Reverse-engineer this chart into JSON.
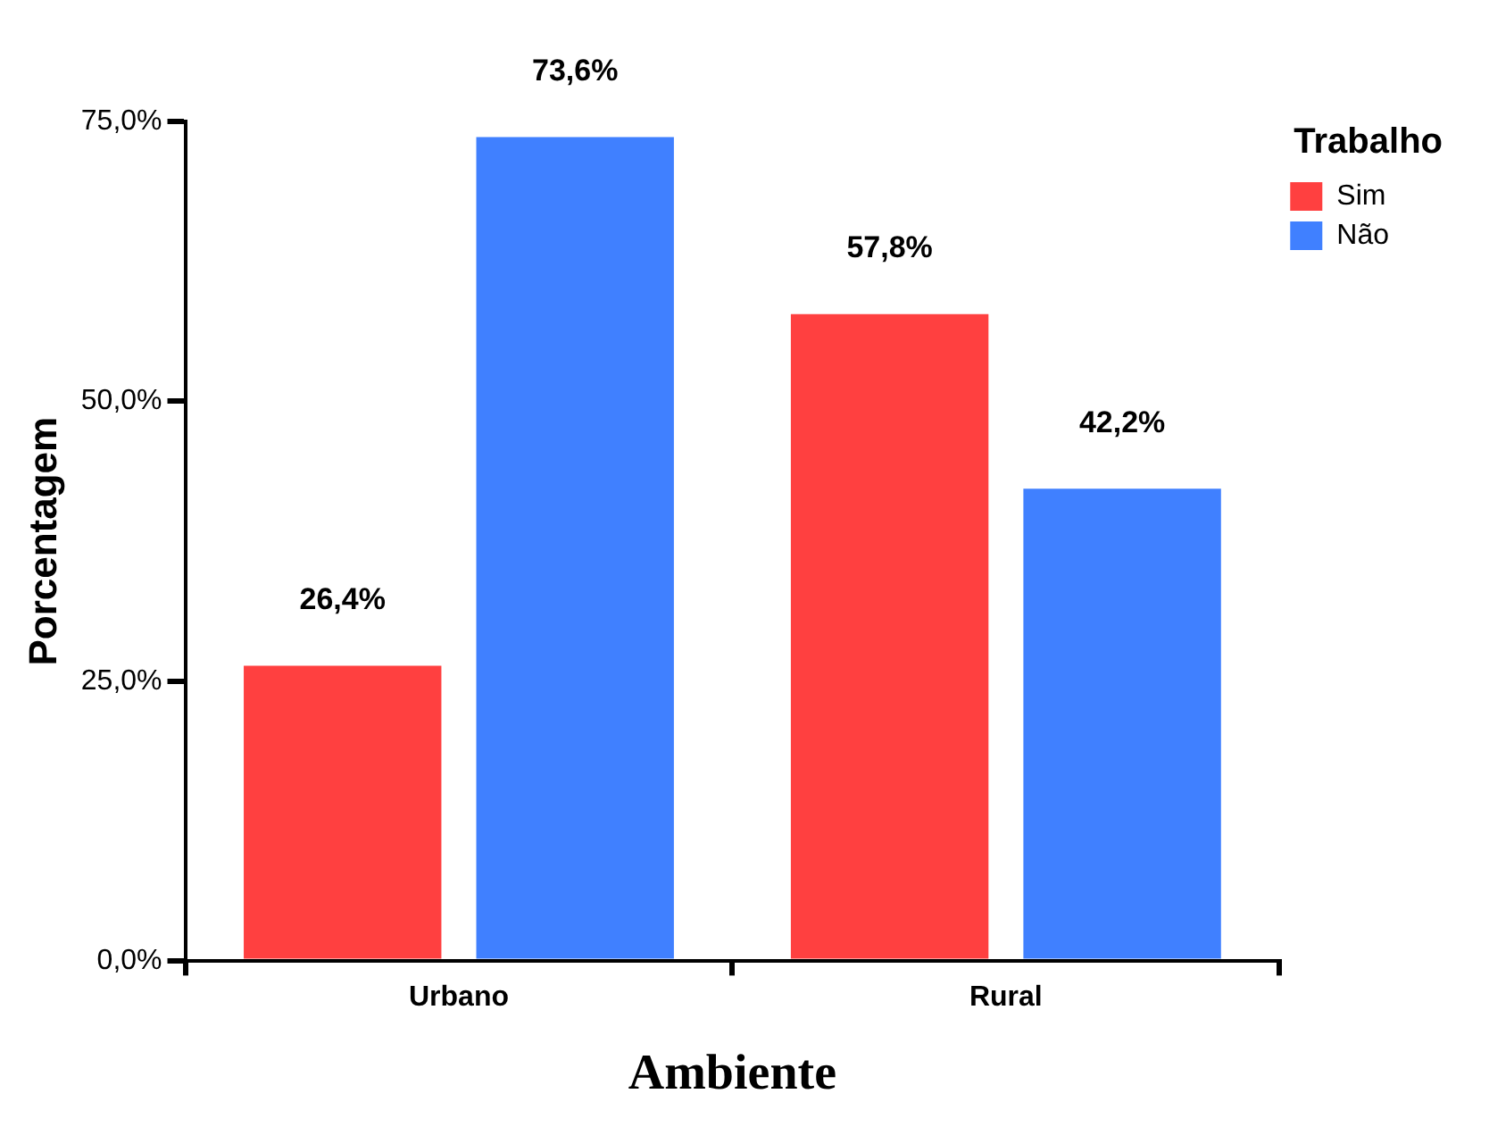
{
  "chart_data": {
    "type": "bar",
    "xlabel": "Ambiente",
    "ylabel": "Porcentagem",
    "legend_title": "Trabalho",
    "categories": [
      "Urbano",
      "Rural"
    ],
    "series": [
      {
        "name": "Sim",
        "color": "#ff4040",
        "values": [
          26.4,
          57.8
        ],
        "value_labels": [
          "26,4%",
          "57,8%"
        ]
      },
      {
        "name": "Não",
        "color": "#4080ff",
        "values": [
          73.6,
          42.2
        ],
        "value_labels": [
          "73,6%",
          "42,2%"
        ]
      }
    ],
    "ylim": [
      0,
      75
    ],
    "yticks": [
      {
        "value": 0,
        "label": "0,0%"
      },
      {
        "value": 25,
        "label": "25,0%"
      },
      {
        "value": 50,
        "label": "50,0%"
      },
      {
        "value": 75,
        "label": "75,0%"
      }
    ],
    "grid": false,
    "legend": "top right"
  }
}
